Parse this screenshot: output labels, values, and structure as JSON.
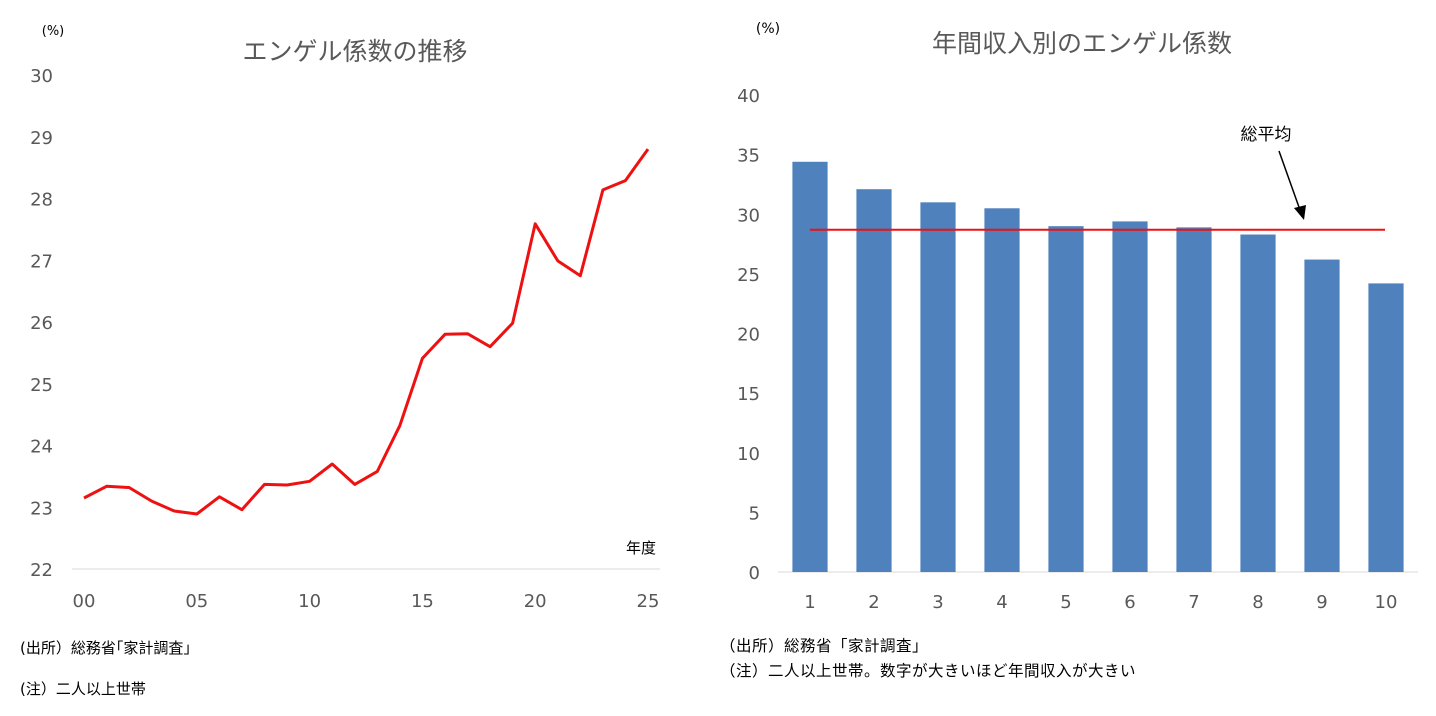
{
  "colors": {
    "line": "#ee1111",
    "bar": "#4f81bd",
    "text": "#595959",
    "avg_line": "#ee1111",
    "axis": "#d9d9d9"
  },
  "left": {
    "unit": "(%)",
    "source": "(出所）総務省｢家計調査｣",
    "note": "(注）二人以上世帯"
  },
  "right": {
    "unit": "(%)",
    "source": "（出所）総務省「家計調査」",
    "note": "（注）二人以上世帯。数字が大きいほど年間収入が大きい",
    "annotation": "総平均"
  },
  "chart_data": [
    {
      "type": "line",
      "title": "エンゲル係数の推移",
      "xlabel": "年度",
      "ylabel": "(%)",
      "ylim": [
        22,
        30
      ],
      "yticks": [
        "22",
        "23",
        "24",
        "25",
        "26",
        "27",
        "28",
        "29",
        "30"
      ],
      "xtick_labels": [
        "00",
        "05",
        "10",
        "15",
        "20",
        "25"
      ],
      "xtick_values": [
        0,
        5,
        10,
        15,
        20,
        25
      ],
      "grid": false,
      "series": [
        {
          "x": [
            0,
            1,
            2,
            3,
            4,
            5,
            6,
            7,
            8,
            9,
            10,
            11,
            12,
            13,
            14,
            15,
            16,
            17,
            18,
            19,
            20,
            21,
            22,
            23,
            24,
            25
          ],
          "values": [
            23.15,
            23.34,
            23.32,
            23.1,
            22.94,
            22.89,
            23.17,
            22.96,
            23.37,
            23.36,
            23.42,
            23.7,
            23.37,
            23.58,
            24.32,
            25.41,
            25.8,
            25.81,
            25.6,
            25.98,
            27.59,
            26.99,
            26.75,
            28.14,
            28.29,
            28.8
          ]
        }
      ]
    },
    {
      "type": "bar",
      "title": "年間収入別のエンゲル係数",
      "xlabel": "",
      "ylabel": "(%)",
      "ylim": [
        0,
        40
      ],
      "yticks": [
        "0",
        "5",
        "10",
        "15",
        "20",
        "25",
        "30",
        "35",
        "40"
      ],
      "categories": [
        "1",
        "2",
        "3",
        "4",
        "5",
        "6",
        "7",
        "8",
        "9",
        "10"
      ],
      "grid": false,
      "series": [
        {
          "values": [
            34.4,
            32.1,
            31.0,
            30.5,
            29.0,
            29.4,
            28.9,
            28.3,
            26.2,
            24.2
          ]
        }
      ],
      "reference_line": {
        "label": "総平均",
        "value": 28.7
      }
    }
  ]
}
